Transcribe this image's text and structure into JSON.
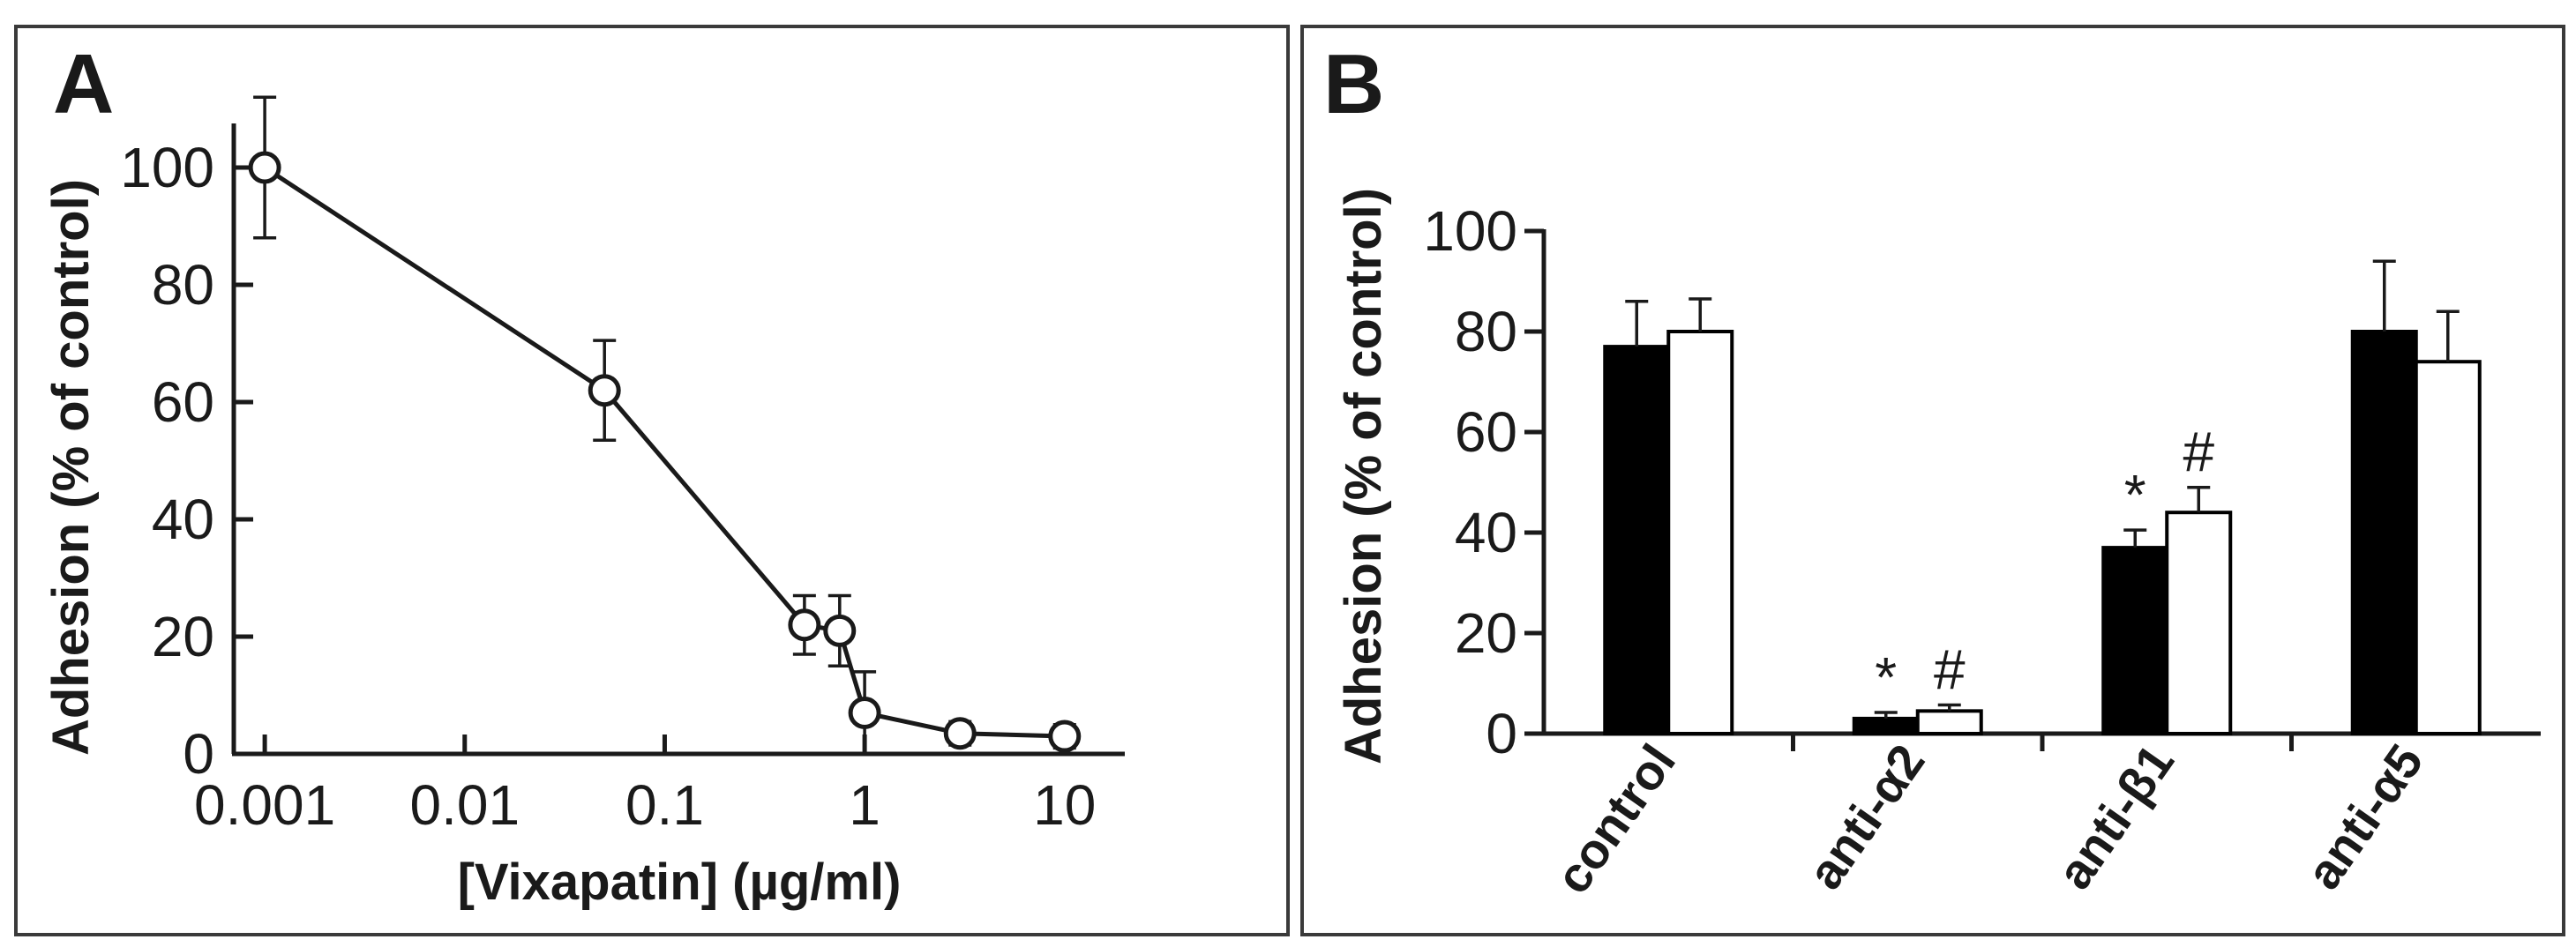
{
  "chart_data": [
    {
      "panel_label": "A",
      "type": "line",
      "xlabel": "[Vixapatin] (µg/ml)",
      "ylabel": "Adhesion (% of control)",
      "xscale": "log",
      "xlim": [
        0.0007,
        20
      ],
      "ylim": [
        0,
        110
      ],
      "x_ticks": [
        0.001,
        0.01,
        0.1,
        1,
        10
      ],
      "x_tick_labels": [
        "0.001",
        "0.01",
        "0.1",
        "1",
        "10"
      ],
      "y_ticks": [
        0,
        20,
        40,
        60,
        80,
        100
      ],
      "y_tick_labels": [
        "0",
        "20",
        "40",
        "60",
        "80",
        "100"
      ],
      "grid": false,
      "marker": "open-circle",
      "series": [
        {
          "x": [
            0.001,
            0.05,
            0.5,
            0.75,
            1,
            3,
            10
          ],
          "y": [
            100,
            62,
            22,
            21,
            7,
            3.5,
            3
          ],
          "error": [
            12,
            8.5,
            5,
            6,
            7,
            2,
            2
          ]
        }
      ]
    },
    {
      "panel_label": "B",
      "type": "bar",
      "ylabel": "Adhesion (% of control)",
      "ylim": [
        0,
        100
      ],
      "y_ticks": [
        0,
        20,
        40,
        60,
        80,
        100
      ],
      "y_tick_labels": [
        "0",
        "20",
        "40",
        "60",
        "80",
        "100"
      ],
      "grid": false,
      "categories": [
        "control",
        "anti-α2",
        "anti-β1",
        "anti-α5"
      ],
      "series": [
        {
          "fill": "#000000",
          "values": [
            77,
            3,
            37,
            80
          ],
          "error": [
            9,
            1.2,
            3.5,
            14
          ],
          "annotations": [
            "",
            "*",
            "*",
            ""
          ]
        },
        {
          "fill": "#ffffff",
          "values": [
            80,
            4.5,
            44,
            74
          ],
          "error": [
            6.5,
            1.2,
            5,
            10
          ],
          "annotations": [
            "",
            "#",
            "#",
            ""
          ]
        }
      ]
    }
  ]
}
